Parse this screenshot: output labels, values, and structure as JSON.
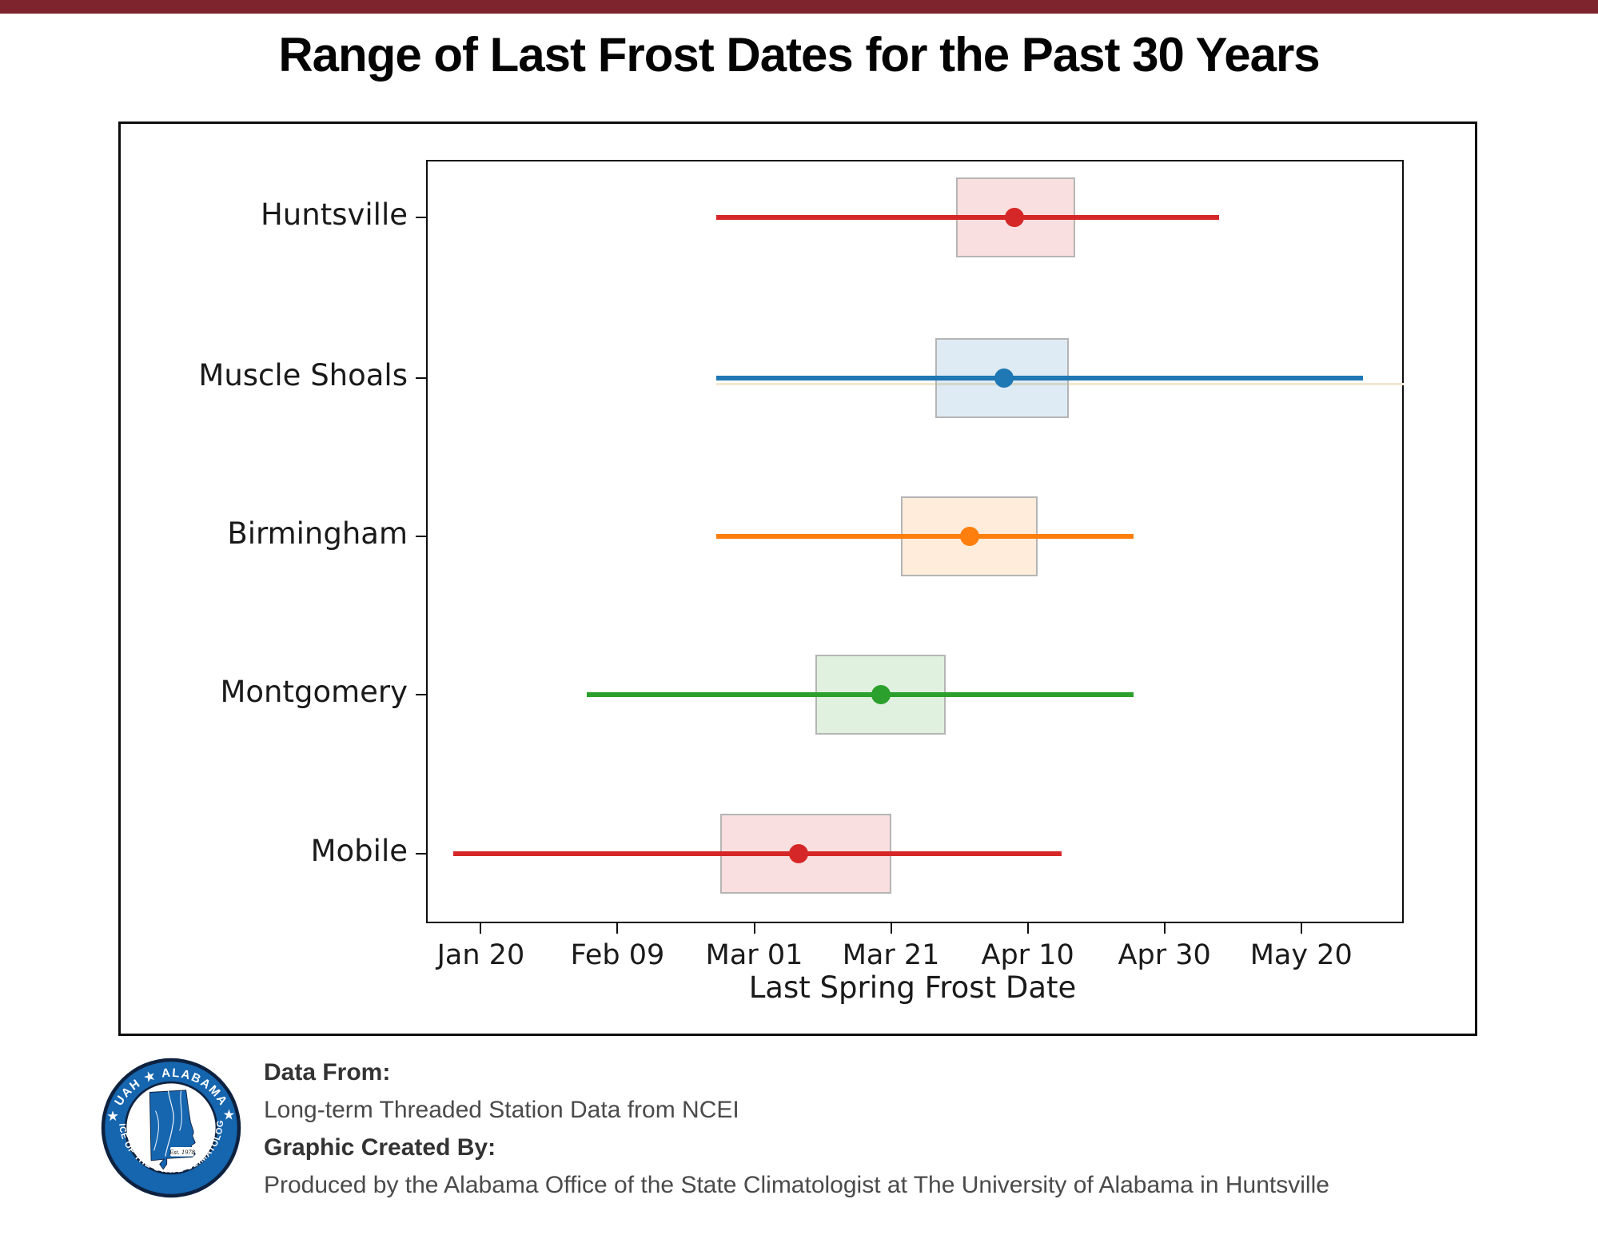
{
  "page": {
    "title": "Range of Last Frost Dates for the Past 30 Years",
    "top_bar_color": "#7e242c"
  },
  "chart_data": {
    "type": "box-whisker-horizontal",
    "xlabel": "Last Spring Frost Date",
    "grid": false,
    "x_axis": {
      "unit": "days relative to Jan 20",
      "xlim_days": [
        -8,
        135
      ],
      "tick_days": [
        0,
        20,
        40,
        60,
        80,
        100,
        120
      ],
      "tick_labels": [
        "Jan 20",
        "Feb 09",
        "Mar 01",
        "Mar 21",
        "Apr 10",
        "Apr 30",
        "May 20"
      ]
    },
    "categories": [
      "Huntsville",
      "Muscle Shoals",
      "Birmingham",
      "Montgomery",
      "Mobile"
    ],
    "series": [
      {
        "name": "Huntsville",
        "color": "#d62728",
        "min_day": 34.5,
        "q1_day": 69.5,
        "mid_day": 78.0,
        "q3_day": 87.0,
        "max_day": 108.0,
        "min_date": "Feb 24",
        "q1_date": "Mar 31",
        "mid_date": "Apr 8",
        "q3_date": "Apr 17",
        "max_date": "May 8"
      },
      {
        "name": "Muscle Shoals",
        "color": "#1f77b4",
        "min_day": 34.5,
        "q1_day": 66.5,
        "mid_day": 76.5,
        "q3_day": 86.0,
        "max_day": 129.0,
        "min_date": "Feb 24",
        "q1_date": "Mar 28",
        "mid_date": "Apr 6",
        "q3_date": "Apr 16",
        "max_date": "May 29"
      },
      {
        "name": "Birmingham",
        "color": "#ff7f0e",
        "min_day": 34.5,
        "q1_day": 61.5,
        "mid_day": 71.5,
        "q3_day": 81.5,
        "max_day": 95.5,
        "min_date": "Feb 24",
        "q1_date": "Mar 23",
        "mid_date": "Apr 1",
        "q3_date": "Apr 11",
        "max_date": "Apr 25"
      },
      {
        "name": "Montgomery",
        "color": "#2ca02c",
        "min_day": 15.5,
        "q1_day": 49.0,
        "mid_day": 58.5,
        "q3_day": 68.0,
        "max_day": 95.5,
        "min_date": "Feb 5",
        "q1_date": "Mar 10",
        "mid_date": "Mar 20",
        "q3_date": "Mar 29",
        "max_date": "Apr 25"
      },
      {
        "name": "Mobile",
        "color": "#d62728",
        "min_day": -4.0,
        "q1_day": 35.0,
        "mid_day": 46.5,
        "q3_day": 60.0,
        "max_day": 85.0,
        "min_date": "Jan 16",
        "q1_date": "Feb 24",
        "mid_date": "Mar 7",
        "q3_date": "Mar 21",
        "max_date": "Apr 15"
      }
    ],
    "extras": {
      "faint_line_row": "Muscle Shoals",
      "faint_line_color": "#f2e8cf",
      "faint_line_from_day": 34.5,
      "faint_line_to_day": 135
    }
  },
  "footer": {
    "data_from_label": "Data From:",
    "data_from_value": "Long-term Threaded Station Data from NCEI",
    "created_by_label": "Graphic Created By:",
    "created_by_value": "Produced by the Alabama Office of the State Climatologist at The University of Alabama in Huntsville",
    "logo": {
      "ring_text_top": "★ UAH ★ ALABAMA ★",
      "ring_text_bottom": "OFFICE OF THE STATE CLIMATOLOGIST",
      "est_text": "Est. 1978",
      "ring_color": "#1565af",
      "dark_color": "#0e2240",
      "state_color": "#1565af"
    }
  }
}
